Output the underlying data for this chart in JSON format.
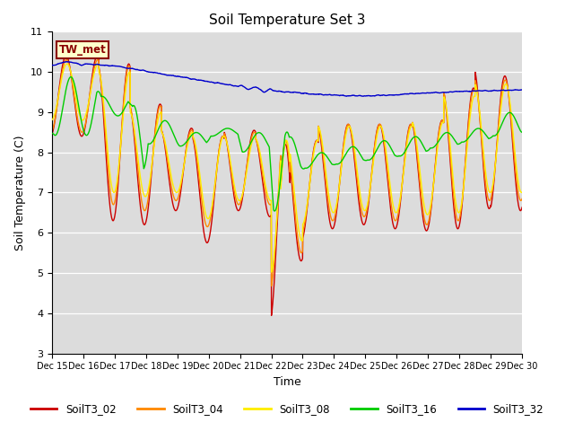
{
  "title": "Soil Temperature Set 3",
  "xlabel": "Time",
  "ylabel": "Soil Temperature (C)",
  "ylim": [
    3.0,
    11.0
  ],
  "yticks": [
    3.0,
    4.0,
    5.0,
    6.0,
    7.0,
    8.0,
    9.0,
    10.0,
    11.0
  ],
  "bg_color": "#dcdcdc",
  "annotation_text": "TW_met",
  "annotation_bg": "#ffffcc",
  "annotation_border": "#8b0000",
  "series_colors": {
    "SoilT3_02": "#cc0000",
    "SoilT3_04": "#ff8800",
    "SoilT3_08": "#ffee00",
    "SoilT3_16": "#00cc00",
    "SoilT3_32": "#0000cc"
  },
  "legend_labels": [
    "SoilT3_02",
    "SoilT3_04",
    "SoilT3_08",
    "SoilT3_16",
    "SoilT3_32"
  ]
}
